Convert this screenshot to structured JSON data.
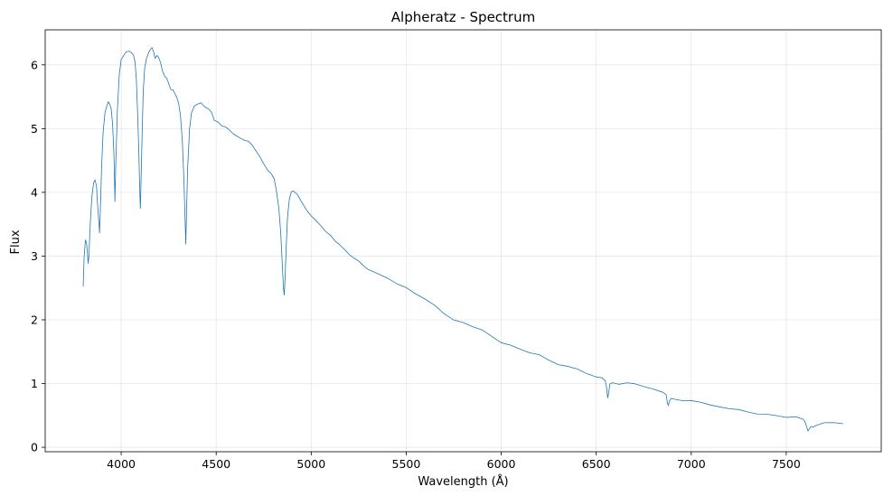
{
  "chart_data": {
    "type": "line",
    "title": "Alpheratz - Spectrum",
    "xlabel": "Wavelength (Å)",
    "ylabel": "Flux",
    "xlim": [
      3600,
      8000
    ],
    "ylim": [
      -0.07,
      6.55
    ],
    "xticks": [
      4000,
      4500,
      5000,
      5500,
      6000,
      6500,
      7000,
      7500
    ],
    "yticks": [
      0,
      1,
      2,
      3,
      4,
      5,
      6
    ],
    "grid": true,
    "line_color": "#1f77b4",
    "series": [
      {
        "values": [
          [
            3800,
            2.52
          ],
          [
            3805,
            3.0
          ],
          [
            3812,
            3.25
          ],
          [
            3818,
            3.2
          ],
          [
            3822,
            3.05
          ],
          [
            3826,
            2.88
          ],
          [
            3830,
            3.0
          ],
          [
            3838,
            3.55
          ],
          [
            3846,
            3.95
          ],
          [
            3855,
            4.15
          ],
          [
            3862,
            4.2
          ],
          [
            3870,
            4.1
          ],
          [
            3876,
            3.8
          ],
          [
            3882,
            3.55
          ],
          [
            3886,
            3.36
          ],
          [
            3890,
            3.7
          ],
          [
            3897,
            4.4
          ],
          [
            3905,
            4.95
          ],
          [
            3915,
            5.25
          ],
          [
            3925,
            5.35
          ],
          [
            3932,
            5.42
          ],
          [
            3940,
            5.38
          ],
          [
            3948,
            5.3
          ],
          [
            3955,
            5.05
          ],
          [
            3962,
            4.6
          ],
          [
            3967,
            3.86
          ],
          [
            3972,
            4.5
          ],
          [
            3980,
            5.3
          ],
          [
            3990,
            5.85
          ],
          [
            4000,
            6.08
          ],
          [
            4012,
            6.15
          ],
          [
            4025,
            6.2
          ],
          [
            4040,
            6.22
          ],
          [
            4055,
            6.2
          ],
          [
            4065,
            6.15
          ],
          [
            4073,
            6.05
          ],
          [
            4080,
            5.75
          ],
          [
            4087,
            5.2
          ],
          [
            4093,
            4.6
          ],
          [
            4098,
            4.0
          ],
          [
            4101,
            3.76
          ],
          [
            4104,
            4.1
          ],
          [
            4110,
            4.9
          ],
          [
            4116,
            5.6
          ],
          [
            4124,
            5.95
          ],
          [
            4134,
            6.1
          ],
          [
            4145,
            6.2
          ],
          [
            4155,
            6.25
          ],
          [
            4162,
            6.28
          ],
          [
            4170,
            6.22
          ],
          [
            4178,
            6.1
          ],
          [
            4188,
            6.15
          ],
          [
            4196,
            6.12
          ],
          [
            4206,
            6.05
          ],
          [
            4218,
            5.9
          ],
          [
            4230,
            5.82
          ],
          [
            4240,
            5.78
          ],
          [
            4252,
            5.68
          ],
          [
            4262,
            5.62
          ],
          [
            4272,
            5.6
          ],
          [
            4282,
            5.55
          ],
          [
            4292,
            5.5
          ],
          [
            4302,
            5.4
          ],
          [
            4312,
            5.2
          ],
          [
            4322,
            4.8
          ],
          [
            4330,
            4.2
          ],
          [
            4336,
            3.6
          ],
          [
            4340,
            3.2
          ],
          [
            4344,
            3.7
          ],
          [
            4350,
            4.4
          ],
          [
            4360,
            5.0
          ],
          [
            4370,
            5.25
          ],
          [
            4385,
            5.35
          ],
          [
            4400,
            5.38
          ],
          [
            4420,
            5.4
          ],
          [
            4440,
            5.35
          ],
          [
            4460,
            5.3
          ],
          [
            4475,
            5.25
          ],
          [
            4490,
            5.12
          ],
          [
            4510,
            5.1
          ],
          [
            4530,
            5.05
          ],
          [
            4550,
            5.02
          ],
          [
            4570,
            4.97
          ],
          [
            4590,
            4.92
          ],
          [
            4610,
            4.88
          ],
          [
            4630,
            4.85
          ],
          [
            4650,
            4.82
          ],
          [
            4670,
            4.8
          ],
          [
            4690,
            4.75
          ],
          [
            4710,
            4.65
          ],
          [
            4730,
            4.55
          ],
          [
            4750,
            4.45
          ],
          [
            4770,
            4.35
          ],
          [
            4790,
            4.28
          ],
          [
            4805,
            4.2
          ],
          [
            4818,
            4.0
          ],
          [
            4830,
            3.75
          ],
          [
            4840,
            3.35
          ],
          [
            4848,
            2.85
          ],
          [
            4854,
            2.5
          ],
          [
            4858,
            2.4
          ],
          [
            4862,
            2.6
          ],
          [
            4868,
            3.1
          ],
          [
            4875,
            3.6
          ],
          [
            4885,
            3.9
          ],
          [
            4895,
            4.0
          ],
          [
            4905,
            4.02
          ],
          [
            4915,
            4.0
          ],
          [
            4925,
            3.97
          ],
          [
            4935,
            3.92
          ],
          [
            4945,
            3.88
          ],
          [
            4960,
            3.8
          ],
          [
            4980,
            3.7
          ],
          [
            5000,
            3.62
          ],
          [
            5025,
            3.55
          ],
          [
            5050,
            3.48
          ],
          [
            5075,
            3.4
          ],
          [
            5100,
            3.32
          ],
          [
            5125,
            3.25
          ],
          [
            5150,
            3.18
          ],
          [
            5175,
            3.1
          ],
          [
            5200,
            3.03
          ],
          [
            5225,
            2.98
          ],
          [
            5250,
            2.92
          ],
          [
            5275,
            2.85
          ],
          [
            5300,
            2.79
          ],
          [
            5350,
            2.72
          ],
          [
            5400,
            2.65
          ],
          [
            5450,
            2.57
          ],
          [
            5500,
            2.5
          ],
          [
            5550,
            2.42
          ],
          [
            5600,
            2.33
          ],
          [
            5650,
            2.22
          ],
          [
            5700,
            2.1
          ],
          [
            5750,
            2.0
          ],
          [
            5800,
            1.95
          ],
          [
            5850,
            1.9
          ],
          [
            5900,
            1.83
          ],
          [
            5950,
            1.73
          ],
          [
            6000,
            1.65
          ],
          [
            6050,
            1.6
          ],
          [
            6100,
            1.55
          ],
          [
            6150,
            1.49
          ],
          [
            6200,
            1.45
          ],
          [
            6250,
            1.38
          ],
          [
            6300,
            1.29
          ],
          [
            6350,
            1.26
          ],
          [
            6400,
            1.23
          ],
          [
            6450,
            1.15
          ],
          [
            6500,
            1.11
          ],
          [
            6530,
            1.1
          ],
          [
            6548,
            1.05
          ],
          [
            6555,
            0.92
          ],
          [
            6560,
            0.78
          ],
          [
            6565,
            0.85
          ],
          [
            6572,
            0.98
          ],
          [
            6585,
            1.0
          ],
          [
            6620,
            1.0
          ],
          [
            6660,
            1.01
          ],
          [
            6700,
            0.99
          ],
          [
            6750,
            0.95
          ],
          [
            6800,
            0.92
          ],
          [
            6850,
            0.86
          ],
          [
            6868,
            0.82
          ],
          [
            6875,
            0.7
          ],
          [
            6880,
            0.65
          ],
          [
            6885,
            0.72
          ],
          [
            6895,
            0.76
          ],
          [
            6920,
            0.75
          ],
          [
            6950,
            0.74
          ],
          [
            7000,
            0.73
          ],
          [
            7050,
            0.71
          ],
          [
            7100,
            0.67
          ],
          [
            7150,
            0.63
          ],
          [
            7200,
            0.61
          ],
          [
            7250,
            0.58
          ],
          [
            7300,
            0.55
          ],
          [
            7350,
            0.53
          ],
          [
            7400,
            0.51
          ],
          [
            7450,
            0.5
          ],
          [
            7500,
            0.48
          ],
          [
            7550,
            0.47
          ],
          [
            7590,
            0.45
          ],
          [
            7600,
            0.4
          ],
          [
            7608,
            0.3
          ],
          [
            7615,
            0.26
          ],
          [
            7622,
            0.28
          ],
          [
            7630,
            0.33
          ],
          [
            7640,
            0.31
          ],
          [
            7660,
            0.35
          ],
          [
            7700,
            0.38
          ],
          [
            7750,
            0.39
          ],
          [
            7800,
            0.37
          ]
        ]
      }
    ]
  }
}
